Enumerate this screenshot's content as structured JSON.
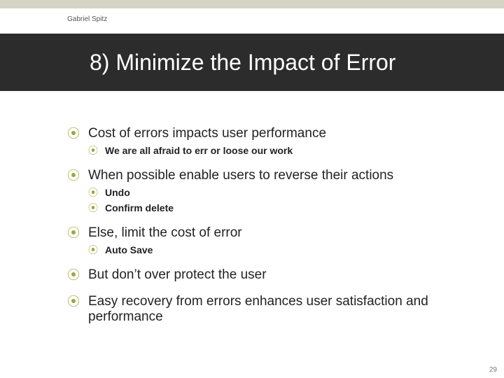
{
  "colors": {
    "accent": "#9fa63b",
    "top_band": "#d5d3c4",
    "title_bg": "#2c2c2c",
    "title_fg": "#ffffff",
    "body_text": "#222222",
    "author_text": "#555555",
    "page_bg": "#ffffff"
  },
  "typography": {
    "title_fontsize": 32,
    "l1_fontsize": 19,
    "l2_fontsize": 14,
    "author_fontsize": 10,
    "pagenum_fontsize": 10,
    "l2_bold": true
  },
  "bullet_glyph": "⦿",
  "author": "Gabriel Spitz",
  "title": "8) Minimize the Impact of Error",
  "page_number": "29",
  "items": [
    {
      "text": "Cost of errors impacts user performance",
      "sub": [
        {
          "text": "We are all afraid to err or loose our work"
        }
      ]
    },
    {
      "text": "When possible enable users to reverse their actions",
      "sub": [
        {
          "text": "Undo"
        },
        {
          "text": "Confirm delete"
        }
      ]
    },
    {
      "text": "Else, limit the cost of error",
      "sub": [
        {
          "text": "Auto Save"
        }
      ]
    },
    {
      "text": "But don’t over protect the user",
      "sub": []
    },
    {
      "text": "Easy recovery from errors enhances user satisfaction and performance",
      "sub": []
    }
  ]
}
